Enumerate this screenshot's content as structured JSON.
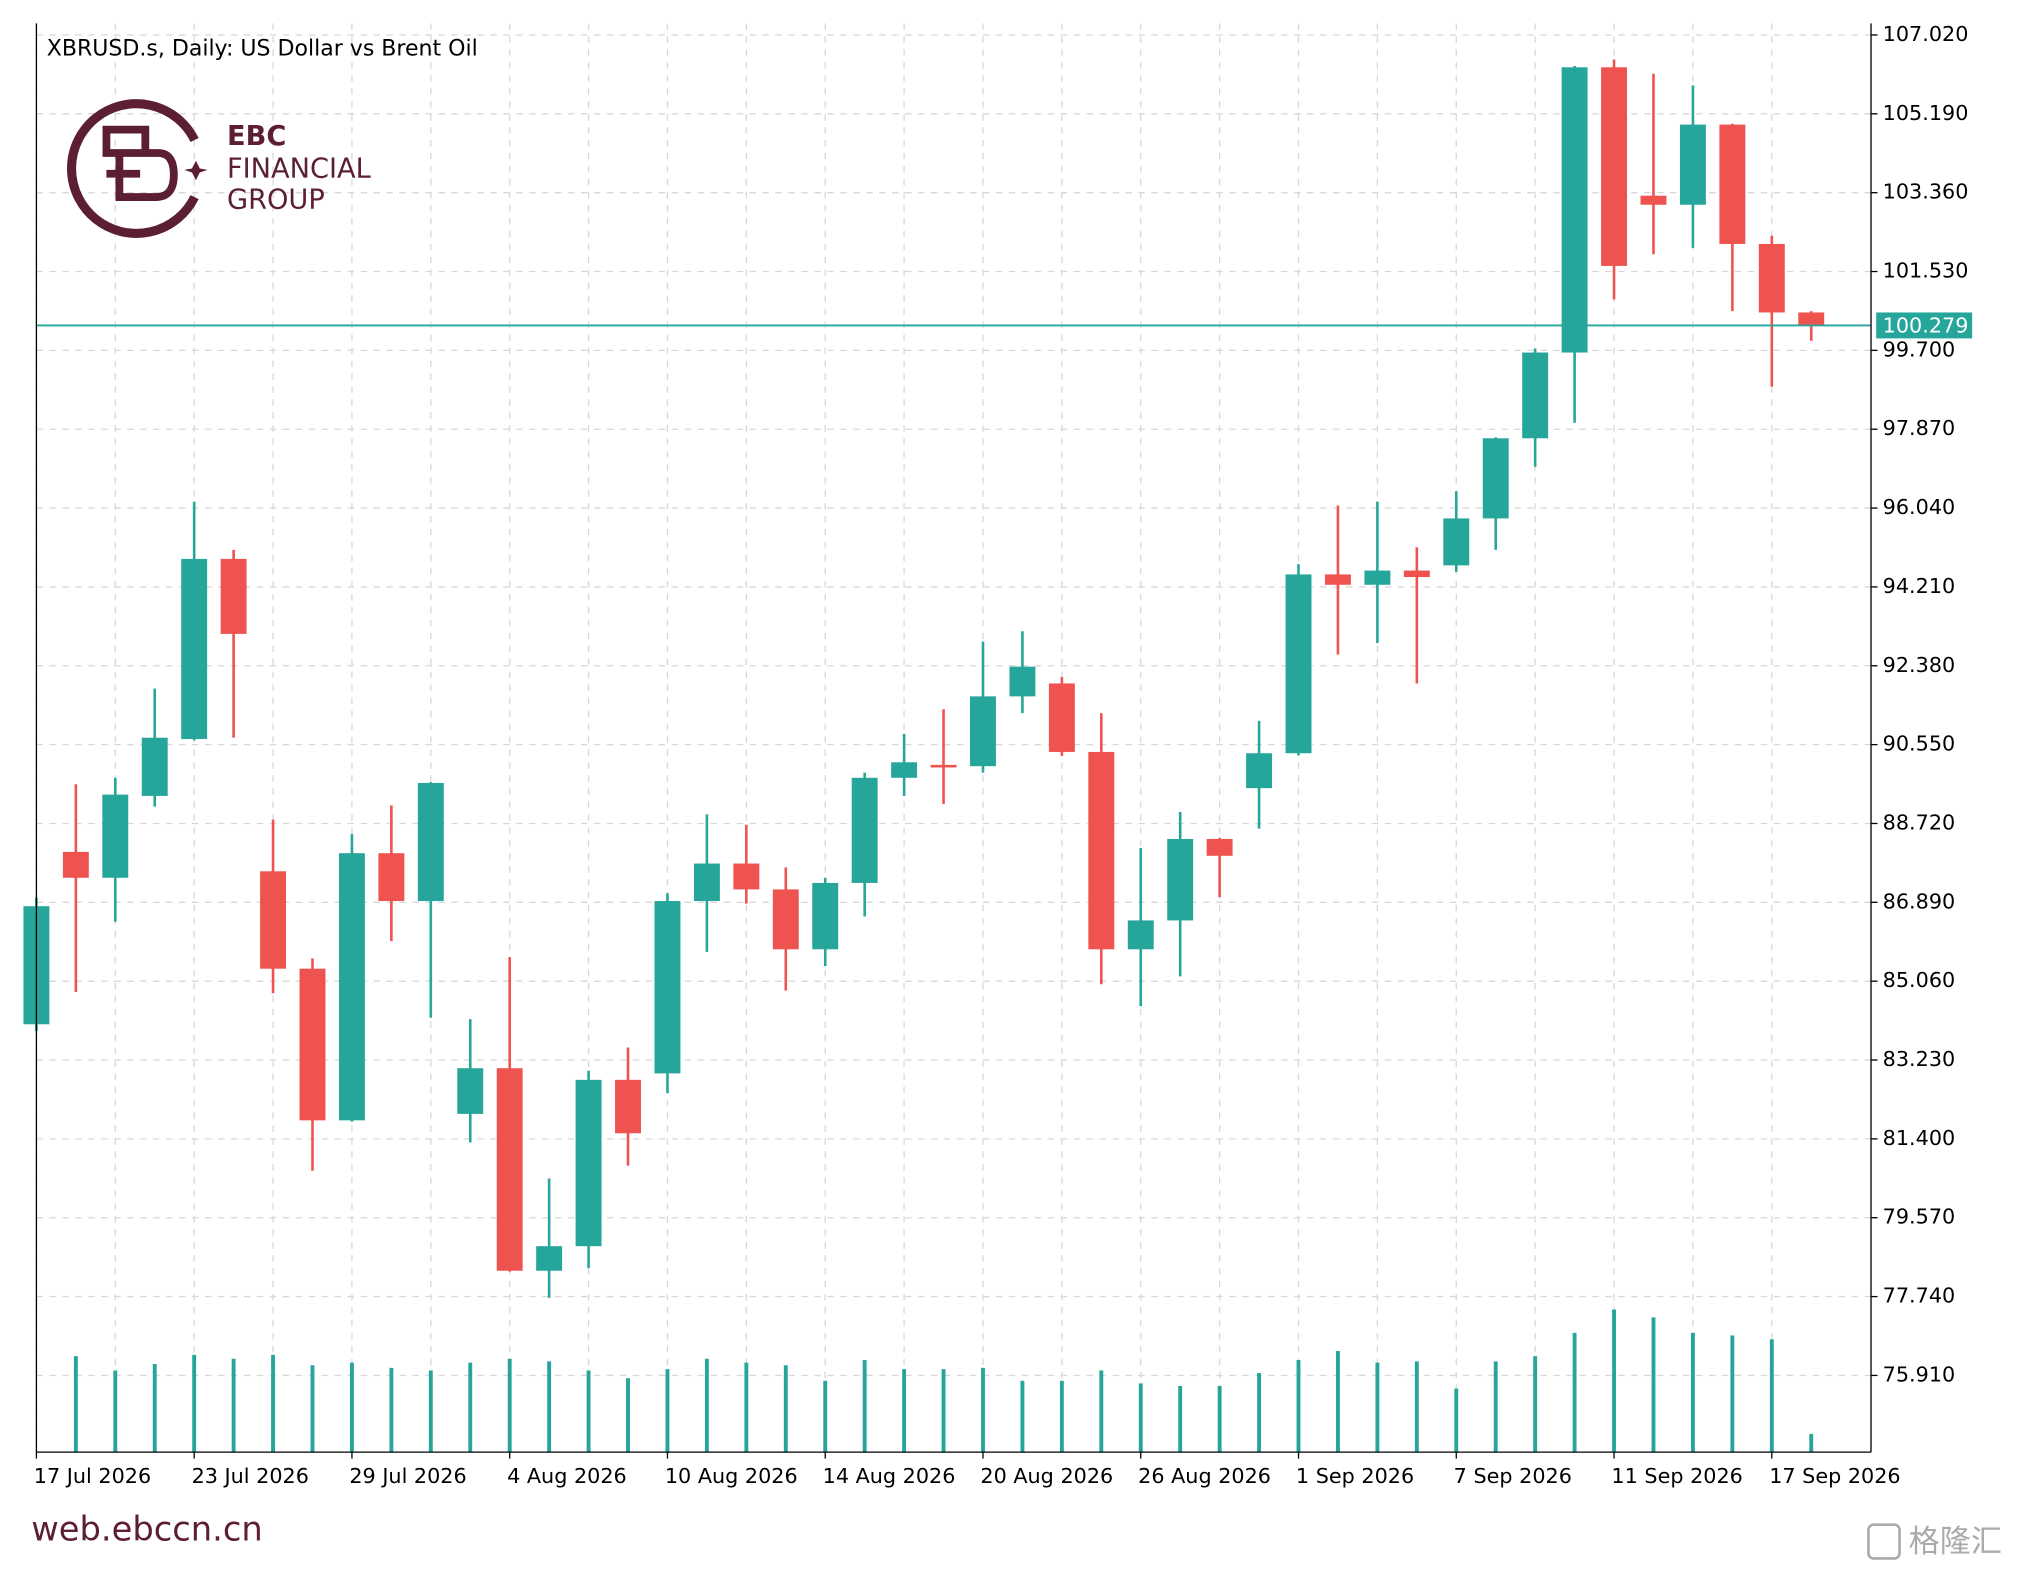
{
  "chart_data": {
    "type": "candlestick",
    "title": "XBRUSD.s, Daily:  US Dollar vs Brent Oil",
    "categories": [
      "17 Jul 2026",
      null,
      null,
      null,
      "23 Jul 2026",
      null,
      null,
      null,
      "29 Jul 2026",
      null,
      null,
      null,
      "4 Aug 2026",
      null,
      null,
      null,
      "10 Aug 2026",
      null,
      null,
      null,
      "14 Aug 2026",
      null,
      null,
      null,
      "20 Aug 2026",
      null,
      null,
      null,
      "26 Aug 2026",
      null,
      null,
      null,
      "1 Sep 2026",
      null,
      null,
      null,
      "7 Sep 2026",
      null,
      null,
      null,
      "11 Sep 2026",
      null,
      null,
      null,
      "17 Sep 2026",
      null
    ],
    "open": [
      84.06,
      88.06,
      87.46,
      89.36,
      90.68,
      94.86,
      87.61,
      85.35,
      81.83,
      88.03,
      86.92,
      81.98,
      83.04,
      78.34,
      78.91,
      82.77,
      82.92,
      86.92,
      87.79,
      87.19,
      85.8,
      87.34,
      89.78,
      90.08,
      90.05,
      91.67,
      91.97,
      90.38,
      85.8,
      86.47,
      88.36,
      89.54,
      90.35,
      94.5,
      94.26,
      94.59,
      94.71,
      95.8,
      97.66,
      99.65,
      106.27,
      103.29,
      103.08,
      104.94,
      102.17,
      100.58
    ],
    "high": [
      87.0,
      89.63,
      89.78,
      91.85,
      96.19,
      95.07,
      88.81,
      85.59,
      88.48,
      89.14,
      89.68,
      84.18,
      85.62,
      80.48,
      82.98,
      83.52,
      87.1,
      88.93,
      88.69,
      87.7,
      87.46,
      89.9,
      90.8,
      91.37,
      92.94,
      93.18,
      92.12,
      91.28,
      88.15,
      88.99,
      88.39,
      91.1,
      94.74,
      96.1,
      96.19,
      95.13,
      96.43,
      97.68,
      99.74,
      106.3,
      106.45,
      106.12,
      105.85,
      104.96,
      102.36,
      100.61
    ],
    "low": [
      83.9,
      84.81,
      86.44,
      89.11,
      90.65,
      90.71,
      84.78,
      80.66,
      81.8,
      85.99,
      84.21,
      81.32,
      78.32,
      77.71,
      78.4,
      80.78,
      82.46,
      85.74,
      86.86,
      84.84,
      85.41,
      86.56,
      89.36,
      89.17,
      89.9,
      91.28,
      90.29,
      84.99,
      84.48,
      85.17,
      87.01,
      88.6,
      90.3,
      92.64,
      92.91,
      91.97,
      94.56,
      95.07,
      97.0,
      98.02,
      100.88,
      101.93,
      102.08,
      100.61,
      98.86,
      99.92
    ],
    "close": [
      86.8,
      87.46,
      89.39,
      90.71,
      94.86,
      93.12,
      85.35,
      81.83,
      88.03,
      86.92,
      89.66,
      83.04,
      78.34,
      78.91,
      82.77,
      81.53,
      86.92,
      87.79,
      87.19,
      85.8,
      87.34,
      89.78,
      90.14,
      90.05,
      91.67,
      92.36,
      90.38,
      85.8,
      86.47,
      88.36,
      87.97,
      90.35,
      94.5,
      94.26,
      94.59,
      94.44,
      95.8,
      97.66,
      99.65,
      106.27,
      101.66,
      103.08,
      104.94,
      102.17,
      100.58,
      100.28
    ],
    "up_color": "#26a69a",
    "down_color": "#ef5350",
    "volume": {
      "color": "#26a69a",
      "values": [
        null,
        74,
        63,
        68,
        75,
        72,
        75,
        67,
        69,
        65,
        63,
        69,
        72,
        70,
        63,
        57,
        64,
        72,
        69,
        67,
        55,
        71,
        64,
        64,
        65,
        55,
        55,
        63,
        53,
        51,
        51,
        61,
        71,
        78,
        69,
        70,
        49,
        70,
        74,
        92,
        110,
        104,
        92,
        90,
        87,
        14
      ]
    },
    "last_price": 100.279,
    "last_price_color": "#26a69a",
    "ylim": [
      74.13,
      107.29
    ],
    "yticks": [
      {
        "value": 107.02,
        "label": "107.020"
      },
      {
        "value": 105.19,
        "label": "105.190"
      },
      {
        "value": 103.36,
        "label": "103.360"
      },
      {
        "value": 101.53,
        "label": "101.530"
      },
      {
        "value": 99.7,
        "label": "99.700"
      },
      {
        "value": 97.87,
        "label": "97.870"
      },
      {
        "value": 96.04,
        "label": "96.040"
      },
      {
        "value": 94.21,
        "label": "94.210"
      },
      {
        "value": 92.38,
        "label": "92.380"
      },
      {
        "value": 90.55,
        "label": "90.550"
      },
      {
        "value": 88.72,
        "label": "88.720"
      },
      {
        "value": 86.89,
        "label": "86.890"
      },
      {
        "value": 85.06,
        "label": "85.060"
      },
      {
        "value": 83.23,
        "label": "83.230"
      },
      {
        "value": 81.4,
        "label": "81.400"
      },
      {
        "value": 79.57,
        "label": "79.570"
      },
      {
        "value": 77.74,
        "label": "77.740"
      },
      {
        "value": 75.91,
        "label": "75.910"
      }
    ],
    "grid": true
  },
  "branding": {
    "logo_lines": [
      "EBC",
      "FINANCIAL",
      "GROUP"
    ],
    "footer": "web.ebccn.cn",
    "watermark": "格隆汇"
  }
}
